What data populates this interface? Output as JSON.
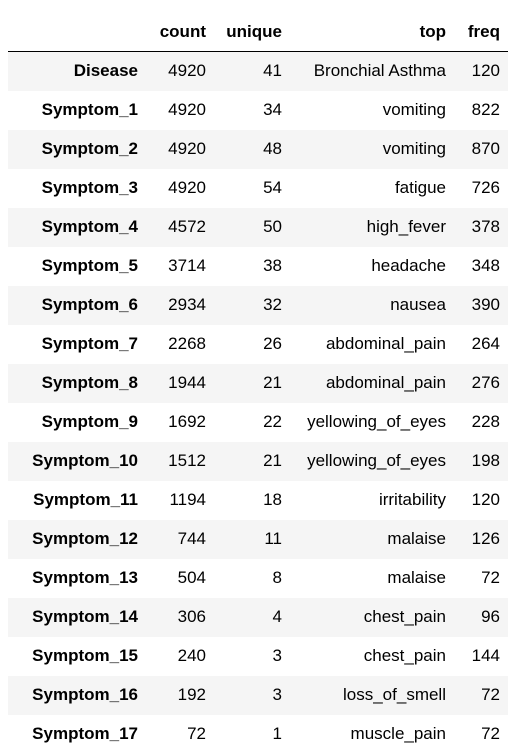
{
  "table": {
    "columns": [
      "count",
      "unique",
      "top",
      "freq"
    ],
    "rows": [
      {
        "index": "Disease",
        "count": "4920",
        "unique": "41",
        "top": "Bronchial Asthma",
        "freq": "120"
      },
      {
        "index": "Symptom_1",
        "count": "4920",
        "unique": "34",
        "top": "vomiting",
        "freq": "822"
      },
      {
        "index": "Symptom_2",
        "count": "4920",
        "unique": "48",
        "top": "vomiting",
        "freq": "870"
      },
      {
        "index": "Symptom_3",
        "count": "4920",
        "unique": "54",
        "top": "fatigue",
        "freq": "726"
      },
      {
        "index": "Symptom_4",
        "count": "4572",
        "unique": "50",
        "top": "high_fever",
        "freq": "378"
      },
      {
        "index": "Symptom_5",
        "count": "3714",
        "unique": "38",
        "top": "headache",
        "freq": "348"
      },
      {
        "index": "Symptom_6",
        "count": "2934",
        "unique": "32",
        "top": "nausea",
        "freq": "390"
      },
      {
        "index": "Symptom_7",
        "count": "2268",
        "unique": "26",
        "top": "abdominal_pain",
        "freq": "264"
      },
      {
        "index": "Symptom_8",
        "count": "1944",
        "unique": "21",
        "top": "abdominal_pain",
        "freq": "276"
      },
      {
        "index": "Symptom_9",
        "count": "1692",
        "unique": "22",
        "top": "yellowing_of_eyes",
        "freq": "228"
      },
      {
        "index": "Symptom_10",
        "count": "1512",
        "unique": "21",
        "top": "yellowing_of_eyes",
        "freq": "198"
      },
      {
        "index": "Symptom_11",
        "count": "1194",
        "unique": "18",
        "top": "irritability",
        "freq": "120"
      },
      {
        "index": "Symptom_12",
        "count": "744",
        "unique": "11",
        "top": "malaise",
        "freq": "126"
      },
      {
        "index": "Symptom_13",
        "count": "504",
        "unique": "8",
        "top": "malaise",
        "freq": "72"
      },
      {
        "index": "Symptom_14",
        "count": "306",
        "unique": "4",
        "top": "chest_pain",
        "freq": "96"
      },
      {
        "index": "Symptom_15",
        "count": "240",
        "unique": "3",
        "top": "chest_pain",
        "freq": "144"
      },
      {
        "index": "Symptom_16",
        "count": "192",
        "unique": "3",
        "top": "loss_of_smell",
        "freq": "72"
      },
      {
        "index": "Symptom_17",
        "count": "72",
        "unique": "1",
        "top": "muscle_pain",
        "freq": "72"
      }
    ]
  }
}
